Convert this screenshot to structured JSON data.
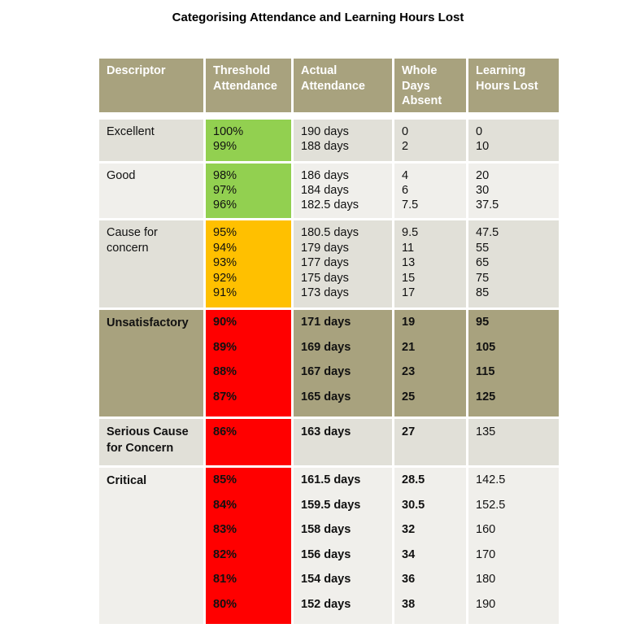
{
  "title": "Categorising Attendance and Learning Hours Lost",
  "colors": {
    "header": "#a8a27e",
    "light": "#e1e0d8",
    "lighter": "#f0efeb",
    "green": "#92d050",
    "amber": "#ffc000",
    "red": "#ff0000"
  },
  "headers": [
    "Descriptor",
    "Threshold Attendance",
    "Actual Attendance",
    "Whole Days Absent",
    "Learning Hours Lost"
  ],
  "rows": [
    {
      "descriptor": "Excellent",
      "bg": "light",
      "threshold_color": "green",
      "bold": [
        false,
        false,
        false,
        false,
        false
      ],
      "spacing": 18,
      "height": 51,
      "threshold": [
        "100%",
        "99%"
      ],
      "actual": [
        "190 days",
        "188 days"
      ],
      "days_absent": [
        "0",
        "2"
      ],
      "hours_lost": [
        "0",
        "10"
      ]
    },
    {
      "descriptor": "Good",
      "bg": "lighter",
      "threshold_color": "green",
      "bold": [
        false,
        false,
        false,
        false,
        false
      ],
      "spacing": 18,
      "height": 67,
      "threshold": [
        "98%",
        "97%",
        "96%"
      ],
      "actual": [
        "186 days",
        "184 days",
        "182.5 days"
      ],
      "days_absent": [
        "4",
        "6",
        "7.5"
      ],
      "hours_lost": [
        "20",
        "30",
        "37.5"
      ]
    },
    {
      "descriptor": "Cause for concern",
      "bg": "light",
      "threshold_color": "amber",
      "bold": [
        false,
        false,
        false,
        false,
        false
      ],
      "spacing": 18.5,
      "height": 107,
      "threshold": [
        "95%",
        "94%",
        "93%",
        "92%",
        "91%"
      ],
      "actual": [
        "180.5 days",
        "179 days",
        "177 days",
        "175 days",
        "173 days"
      ],
      "days_absent": [
        "9.5",
        "11",
        "13",
        "15",
        "17"
      ],
      "hours_lost": [
        "47.5",
        "55",
        "65",
        "75",
        "85"
      ]
    },
    {
      "descriptor": "Unsatisfactory",
      "bg": "header",
      "threshold_color": "red",
      "bold": [
        true,
        true,
        true,
        true,
        true
      ],
      "spacing": 30.5,
      "height": 131,
      "threshold": [
        "90%",
        "89%",
        "88%",
        "87%"
      ],
      "actual": [
        "171 days",
        "169 days",
        "167 days",
        "165 days"
      ],
      "days_absent": [
        "19",
        "21",
        "23",
        "25"
      ],
      "hours_lost": [
        "95",
        "105",
        "115",
        "125"
      ]
    },
    {
      "descriptor": "Serious Cause for Concern",
      "bg": "light",
      "threshold_color": "red",
      "bold": [
        true,
        true,
        true,
        true,
        false
      ],
      "spacing": 20,
      "height": 57,
      "threshold": [
        "86%"
      ],
      "actual": [
        "163 days"
      ],
      "days_absent": [
        "27"
      ],
      "hours_lost": [
        "135"
      ]
    },
    {
      "descriptor": "Critical",
      "bg": "lighter",
      "threshold_color": "red",
      "bold": [
        true,
        true,
        true,
        true,
        false
      ],
      "spacing": 30.5,
      "height": 192,
      "threshold": [
        "85%",
        "84%",
        "83%",
        "82%",
        "81%",
        "80%"
      ],
      "actual": [
        "161.5 days",
        "159.5 days",
        "158 days",
        "156 days",
        "154 days",
        "152 days"
      ],
      "days_absent": [
        "28.5",
        "30.5",
        "32",
        "34",
        "36",
        "38"
      ],
      "hours_lost": [
        "142.5",
        "152.5",
        "160",
        "170",
        "180",
        "190"
      ]
    }
  ]
}
